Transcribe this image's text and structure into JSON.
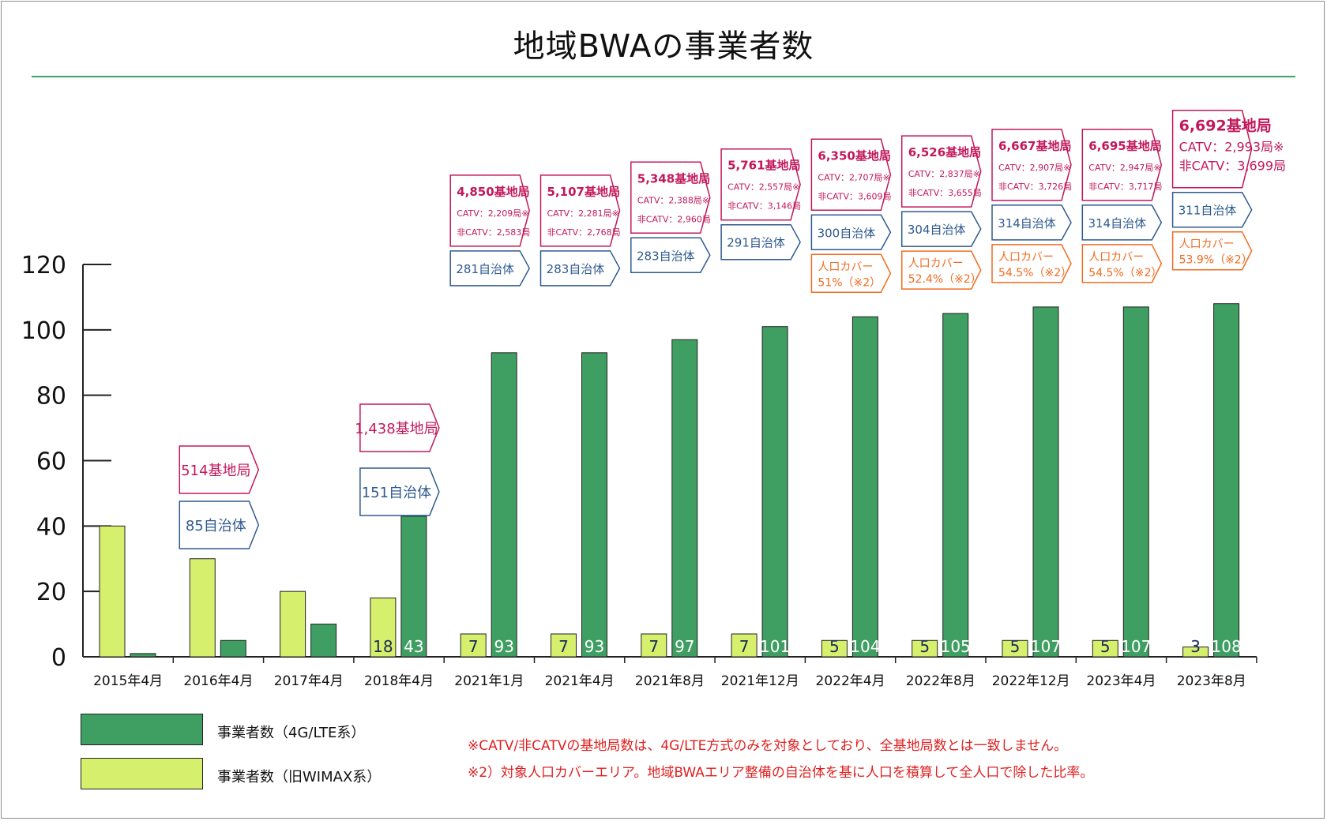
{
  "chart_data": {
    "type": "bar",
    "title": "地域BWAの事業者数",
    "ylim": [
      0,
      120
    ],
    "yticks": [
      0,
      20,
      40,
      60,
      80,
      100,
      120
    ],
    "categories": [
      "2015年4月",
      "2016年4月",
      "2017年4月",
      "2018年4月",
      "2021年1月",
      "2021年4月",
      "2021年8月",
      "2021年12月",
      "2022年4月",
      "2022年8月",
      "2022年12月",
      "2023年4月",
      "2023年8月"
    ],
    "series": [
      {
        "name": "事業者数（旧WIMAX系）",
        "color": "#d6ef6c",
        "values": [
          40,
          30,
          20,
          18,
          7,
          7,
          7,
          7,
          5,
          5,
          5,
          5,
          3
        ],
        "labels": [
          "",
          "",
          "",
          "18",
          "7",
          "7",
          "7",
          "7",
          "5",
          "5",
          "5",
          "5",
          "3"
        ]
      },
      {
        "name": "事業者数（4G/LTE系）",
        "color": "#3f9f62",
        "values": [
          1,
          5,
          10,
          43,
          93,
          93,
          97,
          101,
          104,
          105,
          107,
          107,
          108
        ],
        "labels": [
          "",
          "",
          "",
          "43",
          "93",
          "93",
          "97",
          "101",
          "104",
          "105",
          "107",
          "107",
          "108"
        ]
      }
    ],
    "annotations": [
      null,
      {
        "stations": "514基地局",
        "municipalities": "85自治体"
      },
      null,
      {
        "stations": "1,438基地局",
        "municipalities": "151自治体"
      },
      {
        "stations": "4,850基地局",
        "catv": "CATV：2,209局※",
        "noncatv": "非CATV：2,583局",
        "municipalities": "281自治体"
      },
      {
        "stations": "5,107基地局",
        "catv": "CATV：2,281局※",
        "noncatv": "非CATV：2,768局",
        "municipalities": "283自治体"
      },
      {
        "stations": "5,348基地局",
        "catv": "CATV：2,388局※",
        "noncatv": "非CATV：2,960局",
        "municipalities": "283自治体"
      },
      {
        "stations": "5,761基地局",
        "catv": "CATV：2,557局※",
        "noncatv": "非CATV：3,146局",
        "municipalities": "291自治体"
      },
      {
        "stations": "6,350基地局",
        "catv": "CATV：2,707局※",
        "noncatv": "非CATV：3,609局",
        "municipalities": "300自治体",
        "coverage_label": "人口カバー",
        "coverage": "51%（※2）"
      },
      {
        "stations": "6,526基地局",
        "catv": "CATV：2,837局※",
        "noncatv": "非CATV：3,655局",
        "municipalities": "304自治体",
        "coverage_label": "人口カバー",
        "coverage": "52.4%（※2）"
      },
      {
        "stations": "6,667基地局",
        "catv": "CATV：2,907局※",
        "noncatv": "非CATV：3,726局",
        "municipalities": "314自治体",
        "coverage_label": "人口カバー",
        "coverage": "54.5%（※2）"
      },
      {
        "stations": "6,695基地局",
        "catv": "CATV：2,947局※",
        "noncatv": "非CATV：3,717局",
        "municipalities": "314自治体",
        "coverage_label": "人口カバー",
        "coverage": "54.5%（※2）"
      },
      {
        "stations": "6,692基地局",
        "catv": "CATV：2,993局※",
        "noncatv": "非CATV：3,699局",
        "municipalities": "311自治体",
        "coverage_label": "人口カバー",
        "coverage": "53.9%（※2）"
      }
    ],
    "colors": {
      "stations": "#c2185b",
      "municipalities": "#2e5a8f",
      "coverage": "#f26c21",
      "axis": "#222"
    }
  },
  "legend": {
    "lte": "事業者数（4G/LTE系）",
    "wimax": "事業者数（旧WIMAX系）"
  },
  "notes": {
    "note1": "※CATV/非CATVの基地局数は、4G/LTE方式のみを対象としており、全基地局数とは一致しません。",
    "note2": "※2）対象人口カバーエリア。地域BWAエリア整備の自治体を基に人口を積算して全人口で除した比率。"
  }
}
